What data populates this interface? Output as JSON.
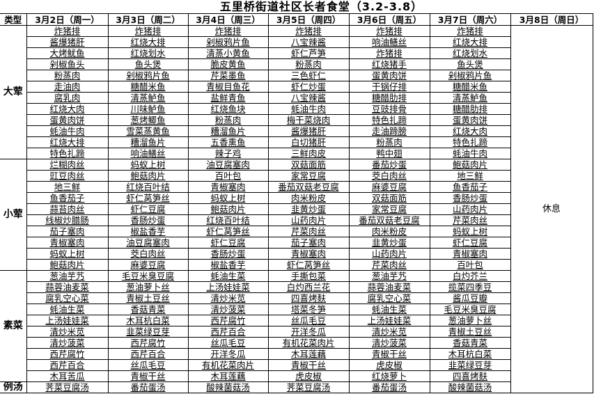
{
  "title": "五里桥街道社区长者食堂（3.2-3.8）",
  "header": [
    "类型",
    "3月2日（周一）",
    "3月3日（周二）",
    "3月4日（周三）",
    "3月5日（周四）",
    "3月6日（周五）",
    "3月7日（周六）",
    "3月8日（周日）"
  ],
  "rest_label": "休息",
  "sections": [
    {
      "type": "大荤",
      "rows": [
        [
          "炸猪排",
          "炸猪排",
          "炸猪排",
          "炸猪排",
          "炸猪排",
          "炸猪排"
        ],
        [
          "酱爆猪肝",
          "红烧大排",
          "剁椒鸦片鱼",
          "八宝辣酱",
          "响油鳝丝",
          "红烧大排"
        ],
        [
          "大烤鱿鱼",
          "红烧划水",
          "清蒸小黄鱼",
          "虾仁芦笋",
          "炸猪排",
          "红烧划水"
        ],
        [
          "剁椒鱼头",
          "鱼头煲",
          "脆皮黄鱼",
          "粉蒸肉",
          "红烧猪手",
          "鱼头煲"
        ],
        [
          "粉蒸肉",
          "剁椒鸦片鱼",
          "芹菜墨鱼",
          "三色虾仁",
          "蛋黄肉饼",
          "剁椒鸦片鱼"
        ],
        [
          "走油肉",
          "糖醋米鱼",
          "青椒目鱼花",
          "虾仁炒蛋",
          "干锅仔排",
          "糖醋米鱼"
        ],
        [
          "腐乳肉",
          "清蒸鲈鱼",
          "盐鲜青鱼",
          "八宝辣酱",
          "糖醋肋排",
          "清蒸鲈鱼"
        ],
        [
          "红烧大肉",
          "川味鲈鱼",
          "红烧鱼块",
          "蚝油牛肉",
          "豆豉排骨",
          "糖醋肋排"
        ],
        [
          "蛋黄肉饼",
          "葱烤鲫鱼",
          "粉蒸肉",
          "梅干菜烧肉",
          "特色扎蹄",
          "蛋黄肉饼"
        ],
        [
          "蚝油牛肉",
          "雪菜蒸黄鱼",
          "糟溜鱼片",
          "酱爆猪肝",
          "走油蹄膀",
          "红烧大肉"
        ],
        [
          "红烧大排",
          "糟溜鱼片",
          "五香熏鱼",
          "白切猪肝",
          "粉蒸肉",
          "特色扎蹄"
        ],
        [
          "特色扎蹄",
          "响油鳝丝",
          "辣子鸡",
          "三鲜肉皮",
          "鸭中翅",
          "蚝油牛肉"
        ]
      ]
    },
    {
      "type": "小荤",
      "rows": [
        [
          "烂糊肉丝",
          "蚂蚁上树",
          "油豆腐塞肉",
          "双菇面筋",
          "番茄炒蛋",
          "鲍菇肉片"
        ],
        [
          "豇豆肉丝",
          "鲍菇肉片",
          "百叶包",
          "家常豆腐",
          "茭白肉丝",
          "地三鲜"
        ],
        [
          "地三鲜",
          "红烧百叶结",
          "青椒塞肉",
          "番茄双菇老豆腐",
          "麻婆豆腐",
          "鱼香茄子"
        ],
        [
          "鱼香茄子",
          "虾仁莴笋丝",
          "蚂蚁上树",
          "肉米粉皮",
          "双菇面筋",
          "香肠炒蛋"
        ],
        [
          "蒜苔肉丝",
          "虾仁豆腐",
          "鲍菇肉片",
          "韭黄炒蛋",
          "家常豆腐",
          "山药肉片"
        ],
        [
          "线椒炒腊肠",
          "香肠炒蛋",
          "红烧百叶结",
          "山药肉片",
          "番茄双菇老豆腐",
          "芹菜肉丝"
        ],
        [
          "茄子塞肉",
          "椒盐香芋",
          "虾仁莴笋丝",
          "芹菜肉丝",
          "肉米粉皮",
          "蚂蚁上树"
        ],
        [
          "青椒塞肉",
          "油豆腐塞肉",
          "虾仁豆腐",
          "茄子塞肉",
          "韭黄炒蛋",
          "虾仁豆腐"
        ],
        [
          "蚂蚁上树",
          "茭白肉丝",
          "香肠炒蛋",
          "青椒塞肉",
          "山药肉片",
          "青椒塞肉"
        ],
        [
          "鲍菇肉片",
          "麻婆豆腐",
          "椒盐香芋",
          "虾仁莴笋丝",
          "芹菜肉丝",
          "百叶包"
        ]
      ]
    },
    {
      "type": "素菜",
      "rows": [
        [
          "葱油芋艿",
          "毛豆米臭豆腐",
          "蚝油生菜",
          "手撕包菜",
          "葱油芋艿",
          "白灼芥兰"
        ],
        [
          "蒜蓉油麦菜",
          "葱油萝卜丝",
          "上汤娃娃菜",
          "白灼西兰花",
          "蒜蓉油麦菜",
          "揽菜四季豆"
        ],
        [
          "腐乳空心菜",
          "青椒土豆丝",
          "清炒米苋",
          "四喜烤麸",
          "腐乳空心菜",
          "酱瓜豆瓣"
        ],
        [
          "蚝油生菜",
          "香菇青菜",
          "清炒菠菜",
          "塔菜冬笋",
          "蚝油生菜",
          "毛豆米臭豆腐"
        ],
        [
          "上汤娃娃菜",
          "木耳杭白菜",
          "西芹腐竹",
          "丝瓜毛豆",
          "上汤娃娃菜",
          "葱油萝卜丝"
        ],
        [
          "清炒米苋",
          "韭菜绿豆芽",
          "西芹百合",
          "开洋冬瓜",
          "清炒米苋",
          "青椒土豆丝"
        ],
        [
          "清炒菠菜",
          "西芹腐竹",
          "丝瓜毛豆",
          "有机花菜肉片",
          "清炒菠菜",
          "香菇青菜"
        ],
        [
          "西芹腐竹",
          "西芹百合",
          "开洋冬瓜",
          "木耳莲藕",
          "青椒干丝",
          "木耳杭白菜"
        ],
        [
          "西芹百合",
          "丝瓜毛豆",
          "有机花菜肉片",
          "青椒干丝",
          "虎皮椒",
          "韭菜绿豆芽"
        ],
        [
          "木耳苦瓜",
          "青椒干丝",
          "木耳莲藕",
          "虎皮椒",
          "红烧萝卜",
          "四喜烤麸"
        ]
      ]
    },
    {
      "type": "例汤",
      "rows": [
        [
          "荠菜豆腐汤",
          "番茄蛋汤",
          "酸辣菌菇汤",
          "荠菜豆腐汤",
          "番茄蛋汤",
          "酸辣菌菇汤"
        ]
      ]
    }
  ]
}
